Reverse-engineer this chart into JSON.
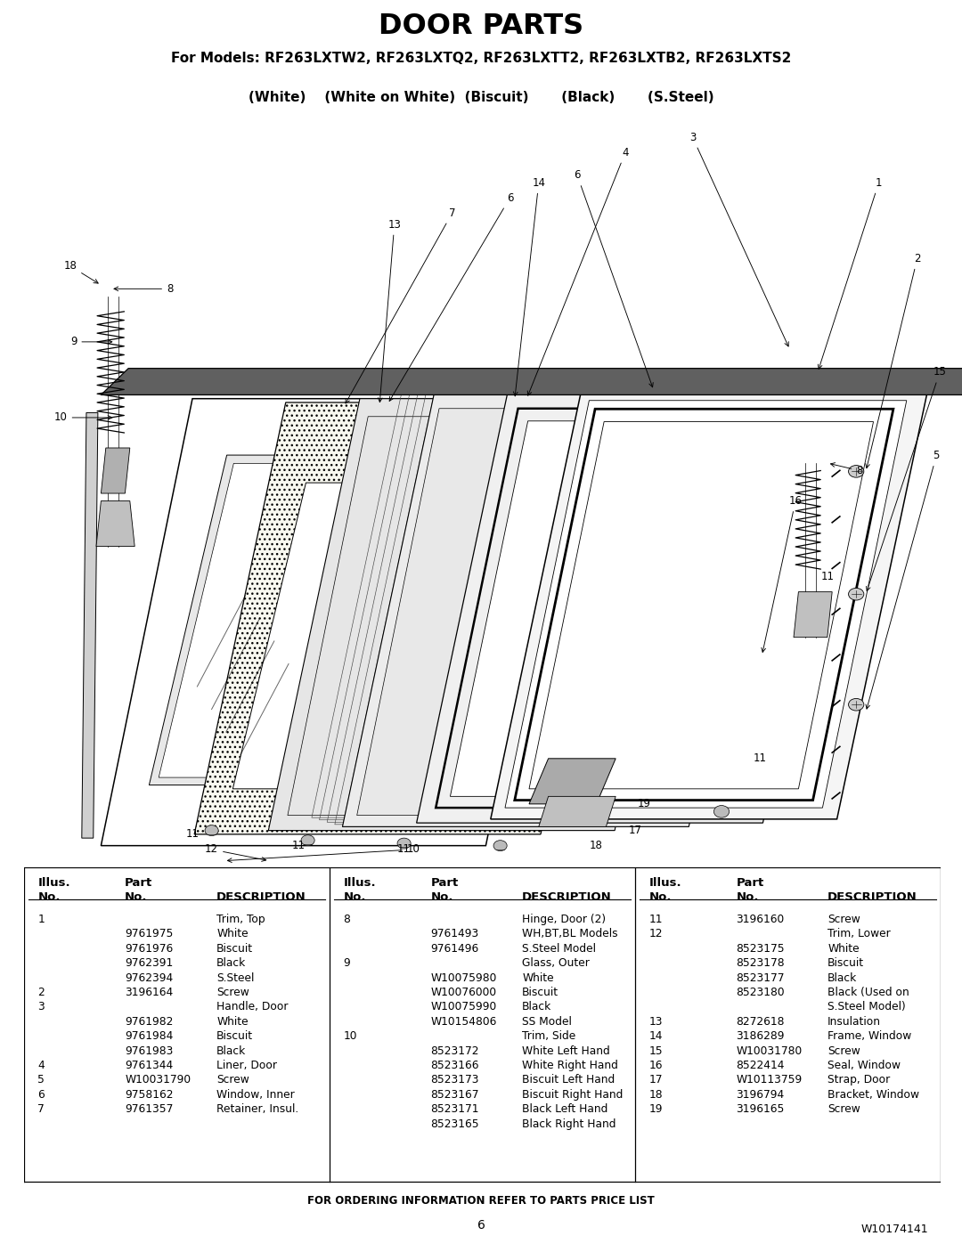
{
  "title": "DOOR PARTS",
  "subtitle1": "For Models: RF263LXTW2, RF263LXTQ2, RF263LXTT2, RF263LXTB2, RF263LXTS2",
  "subtitle2": "(White)    (White on White)  (Biscuit)       (Black)       (S.Steel)",
  "page_number": "6",
  "doc_number": "W10174141",
  "footer_text": "FOR ORDERING INFORMATION REFER TO PARTS PRICE LIST",
  "col1_data": [
    [
      "1",
      "",
      "Trim, Top"
    ],
    [
      "",
      "9761975",
      "White"
    ],
    [
      "",
      "9761976",
      "Biscuit"
    ],
    [
      "",
      "9762391",
      "Black"
    ],
    [
      "",
      "9762394",
      "S.Steel"
    ],
    [
      "2",
      "3196164",
      "Screw"
    ],
    [
      "3",
      "",
      "Handle, Door"
    ],
    [
      "",
      "9761982",
      "White"
    ],
    [
      "",
      "9761984",
      "Biscuit"
    ],
    [
      "",
      "9761983",
      "Black"
    ],
    [
      "4",
      "9761344",
      "Liner, Door"
    ],
    [
      "5",
      "W10031790",
      "Screw"
    ],
    [
      "6",
      "9758162",
      "Window, Inner"
    ],
    [
      "7",
      "9761357",
      "Retainer, Insul."
    ]
  ],
  "col2_data": [
    [
      "8",
      "",
      "Hinge, Door (2)"
    ],
    [
      "",
      "9761493",
      "WH,BT,BL Models"
    ],
    [
      "",
      "9761496",
      "S.Steel Model"
    ],
    [
      "9",
      "",
      "Glass, Outer"
    ],
    [
      "",
      "W10075980",
      "White"
    ],
    [
      "",
      "W10076000",
      "Biscuit"
    ],
    [
      "",
      "W10075990",
      "Black"
    ],
    [
      "",
      "W10154806",
      "SS Model"
    ],
    [
      "10",
      "",
      "Trim, Side"
    ],
    [
      "",
      "8523172",
      "White Left Hand"
    ],
    [
      "",
      "8523166",
      "White Right Hand"
    ],
    [
      "",
      "8523173",
      "Biscuit Left Hand"
    ],
    [
      "",
      "8523167",
      "Biscuit Right Hand"
    ],
    [
      "",
      "8523171",
      "Black Left Hand"
    ],
    [
      "",
      "8523165",
      "Black Right Hand"
    ]
  ],
  "col3_data": [
    [
      "11",
      "3196160",
      "Screw"
    ],
    [
      "12",
      "",
      "Trim, Lower"
    ],
    [
      "",
      "8523175",
      "White"
    ],
    [
      "",
      "8523178",
      "Biscuit"
    ],
    [
      "",
      "8523177",
      "Black"
    ],
    [
      "",
      "8523180",
      "Black (Used on"
    ],
    [
      "",
      "",
      "S.Steel Model)"
    ],
    [
      "13",
      "8272618",
      "Insulation"
    ],
    [
      "14",
      "3186289",
      "Frame, Window"
    ],
    [
      "15",
      "W10031780",
      "Screw"
    ],
    [
      "16",
      "8522414",
      "Seal, Window"
    ],
    [
      "17",
      "W10113759",
      "Strap, Door"
    ],
    [
      "18",
      "3196794",
      "Bracket, Window"
    ],
    [
      "19",
      "3196165",
      "Screw"
    ]
  ],
  "bg_color": "#ffffff"
}
